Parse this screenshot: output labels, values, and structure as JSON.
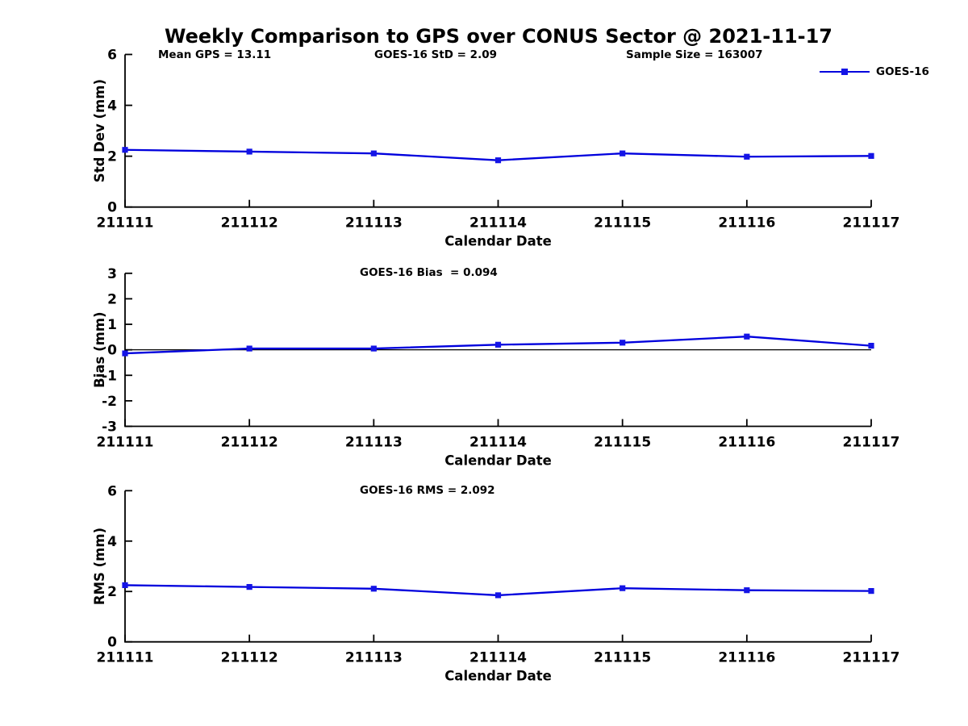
{
  "title": "Weekly Comparison to GPS over CONUS Sector @ 2021-11-17",
  "header_annotations": {
    "mean_gps": "Mean GPS = 13.11",
    "goes16_std": "GOES-16 StD = 2.09",
    "sample_size": "Sample Size = 163007"
  },
  "legend": {
    "label": "GOES-16",
    "position": "top-right"
  },
  "colors": {
    "line": "#0000dd",
    "marker": "#1414e6",
    "axis": "#000000",
    "text": "#000000",
    "background": "#ffffff"
  },
  "chart_data": [
    {
      "type": "line",
      "name": "std-dev-vs-date",
      "annotation": "",
      "xlabel": "Calendar Date",
      "ylabel": "Std Dev (mm)",
      "categories": [
        "211111",
        "211112",
        "211113",
        "211114",
        "211115",
        "211116",
        "211117"
      ],
      "series": [
        {
          "name": "GOES-16",
          "values": [
            2.25,
            2.18,
            2.11,
            1.84,
            2.11,
            1.98,
            2.01
          ]
        }
      ],
      "ylim": [
        0,
        6
      ],
      "yticks": [
        0,
        2,
        4,
        6
      ],
      "grid": false,
      "zero_line": false
    },
    {
      "type": "line",
      "name": "bias-vs-date",
      "annotation": "GOES-16 Bias  = 0.094",
      "xlabel": "Calendar Date",
      "ylabel": "Bias (mm)",
      "categories": [
        "211111",
        "211112",
        "211113",
        "211114",
        "211115",
        "211116",
        "211117"
      ],
      "series": [
        {
          "name": "GOES-16",
          "values": [
            -0.14,
            0.05,
            0.05,
            0.2,
            0.28,
            0.52,
            0.16
          ]
        }
      ],
      "ylim": [
        -3,
        3
      ],
      "yticks": [
        -3,
        -2,
        -1,
        0,
        1,
        2,
        3
      ],
      "grid": false,
      "zero_line": true
    },
    {
      "type": "line",
      "name": "rms-vs-date",
      "annotation": "GOES-16 RMS = 2.092",
      "xlabel": "Calendar Date",
      "ylabel": "RMS (mm)",
      "categories": [
        "211111",
        "211112",
        "211113",
        "211114",
        "211115",
        "211116",
        "211117"
      ],
      "series": [
        {
          "name": "GOES-16",
          "values": [
            2.25,
            2.18,
            2.11,
            1.85,
            2.13,
            2.05,
            2.02
          ]
        }
      ],
      "ylim": [
        0,
        6
      ],
      "yticks": [
        0,
        2,
        4,
        6
      ],
      "grid": false,
      "zero_line": false
    }
  ]
}
